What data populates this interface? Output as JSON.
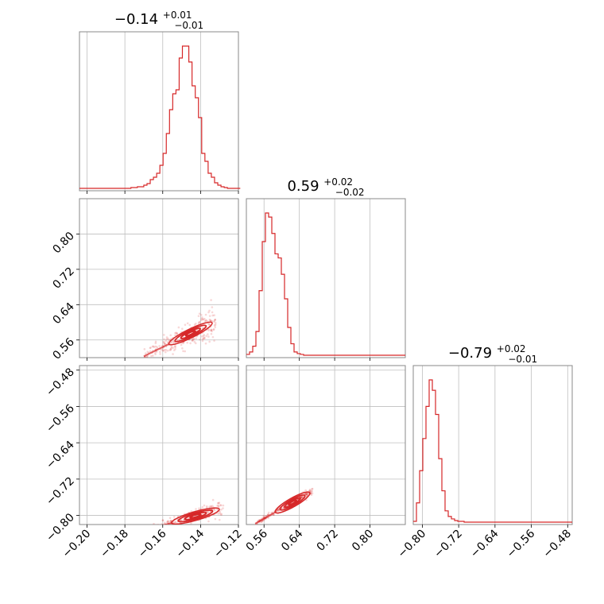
{
  "chart_data": {
    "type": "corner",
    "color": "#d62728",
    "grid": true,
    "parameters": [
      {
        "index": 0,
        "title": {
          "median": "−0.14",
          "plus": "+0.01",
          "minus": "−0.01"
        },
        "range": [
          -0.204,
          -0.12
        ],
        "ticks": [
          {
            "value": -0.2,
            "label": "−0.20"
          },
          {
            "value": -0.18,
            "label": "−0.18"
          },
          {
            "value": -0.16,
            "label": "−0.16"
          },
          {
            "value": -0.14,
            "label": "−0.14"
          },
          {
            "value": -0.12,
            "label": "−0.12"
          }
        ],
        "histogram": {
          "bins": [
            -0.204,
            -0.2023,
            -0.2006,
            -0.1989,
            -0.1972,
            -0.1955,
            -0.1938,
            -0.1921,
            -0.1904,
            -0.1887,
            -0.187,
            -0.1853,
            -0.1836,
            -0.1819,
            -0.1802,
            -0.1785,
            -0.1768,
            -0.1751,
            -0.1734,
            -0.1717,
            -0.17,
            -0.1683,
            -0.1666,
            -0.1649,
            -0.1632,
            -0.1615,
            -0.1598,
            -0.1581,
            -0.1564,
            -0.1547,
            -0.153,
            -0.1513,
            -0.1496,
            -0.1479,
            -0.1462,
            -0.1445,
            -0.1428,
            -0.1411,
            -0.1394,
            -0.1377,
            -0.136,
            -0.1343,
            -0.1326,
            -0.1309,
            -0.1292,
            -0.1275,
            -0.1258,
            -0.1241,
            -0.1224,
            -0.1207
          ],
          "counts": [
            1,
            1,
            1,
            1,
            1,
            1,
            1,
            1,
            1,
            1,
            1,
            1,
            1,
            1,
            1,
            1,
            2,
            2,
            3,
            3,
            5,
            7,
            12,
            15,
            20,
            30,
            45,
            70,
            100,
            120,
            125,
            165,
            180,
            180,
            160,
            130,
            115,
            90,
            45,
            35,
            20,
            15,
            8,
            5,
            3,
            2,
            1,
            1,
            1,
            1
          ]
        }
      },
      {
        "index": 1,
        "title": {
          "median": "0.59",
          "plus": "+0.02",
          "minus": "−0.02"
        },
        "range": [
          0.52,
          0.88
        ],
        "ticks": [
          {
            "value": 0.56,
            "label": "0.56"
          },
          {
            "value": 0.64,
            "label": "0.64"
          },
          {
            "value": 0.72,
            "label": "0.72"
          },
          {
            "value": 0.8,
            "label": "0.80"
          }
        ],
        "histogram": {
          "bins": [
            0.52,
            0.5272,
            0.5344,
            0.5416,
            0.5488,
            0.556,
            0.5632,
            0.5704,
            0.5776,
            0.5848,
            0.592,
            0.5992,
            0.6064,
            0.6136,
            0.6208,
            0.628,
            0.6352,
            0.6424,
            0.6496,
            0.6568,
            0.664,
            0.6712,
            0.6784,
            0.6856,
            0.6928,
            0.7,
            0.7072,
            0.7144,
            0.7216,
            0.7288,
            0.736,
            0.7432,
            0.7504,
            0.7576,
            0.7648,
            0.772,
            0.7792,
            0.7864,
            0.7936,
            0.8008,
            0.808,
            0.8152,
            0.8224,
            0.8296,
            0.8368,
            0.844,
            0.8512,
            0.8584,
            0.8656,
            0.8728
          ],
          "counts": [
            2,
            5,
            12,
            30,
            80,
            140,
            175,
            170,
            150,
            125,
            120,
            100,
            70,
            35,
            15,
            5,
            3,
            2,
            1,
            1,
            1,
            1,
            1,
            1,
            1,
            1,
            1,
            1,
            1,
            1,
            1,
            1,
            1,
            1,
            1,
            1,
            1,
            1,
            1,
            1,
            1,
            1,
            1,
            1,
            1,
            1,
            1,
            1,
            1,
            1
          ]
        }
      },
      {
        "index": 2,
        "title": {
          "median": "−0.79",
          "plus": "+0.02",
          "minus": "−0.01"
        },
        "range": [
          -0.82,
          -0.47
        ],
        "ticks": [
          {
            "value": -0.8,
            "label": "−0.80"
          },
          {
            "value": -0.72,
            "label": "−0.72"
          },
          {
            "value": -0.64,
            "label": "−0.64"
          },
          {
            "value": -0.56,
            "label": "−0.56"
          },
          {
            "value": -0.48,
            "label": "−0.48"
          }
        ],
        "histogram": {
          "bins": [
            -0.82,
            -0.813,
            -0.806,
            -0.799,
            -0.792,
            -0.785,
            -0.778,
            -0.771,
            -0.764,
            -0.757,
            -0.75,
            -0.743,
            -0.736,
            -0.729,
            -0.722,
            -0.715,
            -0.708,
            -0.701,
            -0.694,
            -0.687,
            -0.68,
            -0.673,
            -0.666,
            -0.659,
            -0.652,
            -0.645,
            -0.638,
            -0.631,
            -0.624,
            -0.617,
            -0.61,
            -0.603,
            -0.596,
            -0.589,
            -0.582,
            -0.575,
            -0.568,
            -0.561,
            -0.554,
            -0.547,
            -0.54,
            -0.533,
            -0.526,
            -0.519,
            -0.512,
            -0.505,
            -0.498,
            -0.491,
            -0.484,
            -0.477
          ],
          "counts": [
            2,
            25,
            65,
            105,
            145,
            178,
            165,
            135,
            80,
            40,
            15,
            8,
            5,
            3,
            2,
            2,
            1,
            1,
            1,
            1,
            1,
            1,
            1,
            1,
            1,
            1,
            1,
            1,
            1,
            1,
            1,
            1,
            1,
            1,
            1,
            1,
            1,
            1,
            1,
            1,
            1,
            1,
            1,
            1,
            1,
            1,
            1,
            1,
            1,
            1
          ]
        }
      }
    ],
    "correlations": {
      "p1_vs_p0": {
        "slope": 2.1,
        "intercept": 0.88,
        "spread": 0.012,
        "ridge": [
          -0.17,
          -0.132
        ]
      },
      "p2_vs_p0": {
        "slope": 1.2,
        "intercept": -0.63,
        "spread": 0.006,
        "ridge": [
          -0.17,
          -0.128
        ]
      },
      "p2_vs_p1": {
        "slope": 0.55,
        "intercept": -1.115,
        "spread": 0.003,
        "ridge": [
          0.54,
          0.67
        ]
      }
    }
  }
}
